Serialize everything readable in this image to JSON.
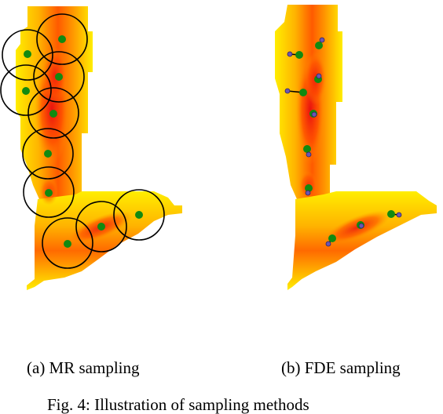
{
  "figure": {
    "caption": "Fig. 4: Illustration of sampling methods",
    "panels": [
      {
        "id": "a",
        "label": "(a) MR sampling"
      },
      {
        "id": "b",
        "label": "(b) FDE sampling"
      }
    ]
  },
  "colors": {
    "map_low": "#ffee00",
    "map_mid": "#ff9a00",
    "map_high": "#e81010",
    "sample_point": "#118a11",
    "circle_stroke": "#000000",
    "offset_point": "#6a55b5",
    "offset_line": "#000000"
  }
}
